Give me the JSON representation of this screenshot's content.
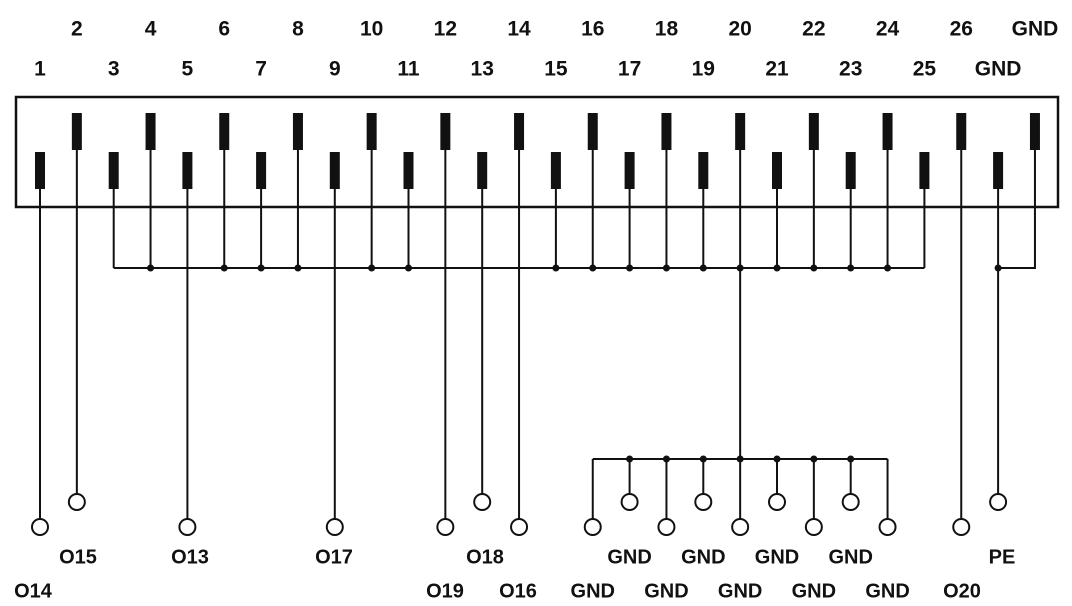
{
  "top_labels": [
    "2",
    "4",
    "6",
    "8",
    "10",
    "12",
    "14",
    "16",
    "18",
    "20",
    "22",
    "24",
    "26",
    "GND"
  ],
  "bottom_labels": [
    "1",
    "3",
    "5",
    "7",
    "9",
    "11",
    "13",
    "15",
    "17",
    "19",
    "21",
    "23",
    "25",
    "GND"
  ],
  "terminals_upper": [
    "O15",
    "O13",
    "O17",
    "O18",
    "GND",
    "GND",
    "GND",
    "GND",
    "PE"
  ],
  "terminals_lower": [
    "O14",
    "O19",
    "O16",
    "GND",
    "GND",
    "GND",
    "GND",
    "GND",
    "O20"
  ]
}
